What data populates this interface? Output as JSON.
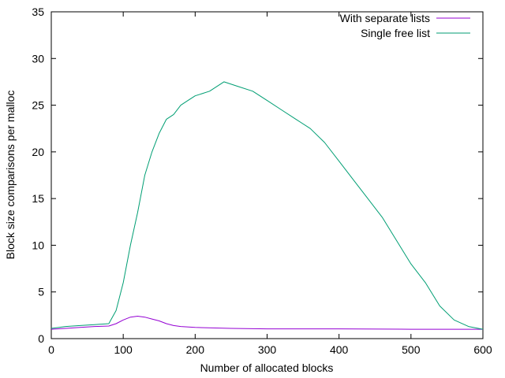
{
  "chart_data": {
    "type": "line",
    "title": "",
    "xlabel": "Number of allocated blocks",
    "ylabel": "Block size comparisons per malloc",
    "xlim": [
      0,
      600
    ],
    "ylim": [
      0,
      35
    ],
    "xticks": [
      0,
      100,
      200,
      300,
      400,
      500,
      600
    ],
    "yticks": [
      0,
      5,
      10,
      15,
      20,
      25,
      30,
      35
    ],
    "grid": false,
    "legend": "top-right",
    "series": [
      {
        "name": "With separate lists",
        "color": "#9400d3",
        "points": [
          [
            0,
            1.0
          ],
          [
            20,
            1.1
          ],
          [
            40,
            1.2
          ],
          [
            60,
            1.3
          ],
          [
            80,
            1.35
          ],
          [
            90,
            1.6
          ],
          [
            100,
            2.0
          ],
          [
            110,
            2.3
          ],
          [
            120,
            2.4
          ],
          [
            130,
            2.3
          ],
          [
            140,
            2.1
          ],
          [
            150,
            1.9
          ],
          [
            160,
            1.6
          ],
          [
            170,
            1.4
          ],
          [
            180,
            1.3
          ],
          [
            200,
            1.2
          ],
          [
            250,
            1.1
          ],
          [
            300,
            1.05
          ],
          [
            400,
            1.05
          ],
          [
            500,
            1.0
          ],
          [
            600,
            1.0
          ]
        ]
      },
      {
        "name": "Single free list",
        "color": "#009e73",
        "points": [
          [
            0,
            1.1
          ],
          [
            20,
            1.3
          ],
          [
            40,
            1.4
          ],
          [
            60,
            1.5
          ],
          [
            80,
            1.6
          ],
          [
            90,
            3.0
          ],
          [
            100,
            6.0
          ],
          [
            110,
            10.0
          ],
          [
            120,
            13.5
          ],
          [
            130,
            17.5
          ],
          [
            140,
            20.0
          ],
          [
            150,
            22.0
          ],
          [
            160,
            23.5
          ],
          [
            170,
            24.0
          ],
          [
            180,
            25.0
          ],
          [
            190,
            25.5
          ],
          [
            200,
            26.0
          ],
          [
            220,
            26.5
          ],
          [
            240,
            27.5
          ],
          [
            260,
            27.0
          ],
          [
            280,
            26.5
          ],
          [
            300,
            25.5
          ],
          [
            320,
            24.5
          ],
          [
            340,
            23.5
          ],
          [
            360,
            22.5
          ],
          [
            380,
            21.0
          ],
          [
            400,
            19.0
          ],
          [
            420,
            17.0
          ],
          [
            440,
            15.0
          ],
          [
            460,
            13.0
          ],
          [
            480,
            10.5
          ],
          [
            500,
            8.0
          ],
          [
            520,
            6.0
          ],
          [
            540,
            3.5
          ],
          [
            560,
            2.0
          ],
          [
            580,
            1.3
          ],
          [
            600,
            1.0
          ]
        ]
      }
    ]
  }
}
